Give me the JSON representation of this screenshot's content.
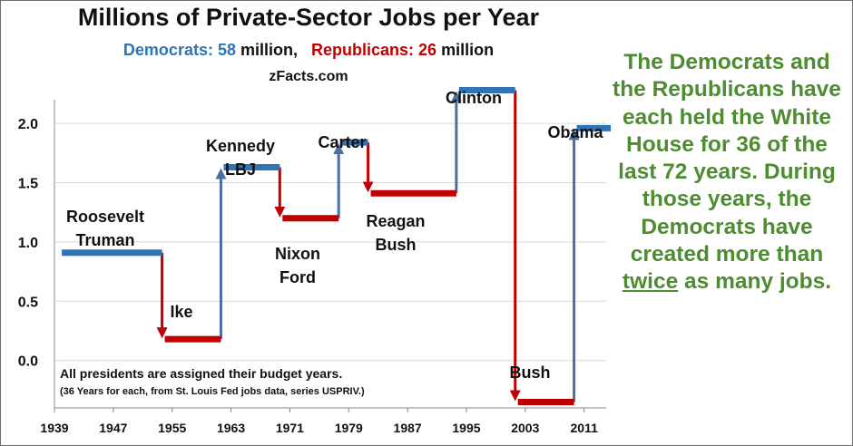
{
  "chart_data": {
    "type": "line",
    "style": "step",
    "title": "Millions of Private-Sector Jobs per Year",
    "subtitle": {
      "dem_label": "Democrats: 58",
      "dem_suffix": " million,",
      "rep_label": "Republicans: 26",
      "rep_suffix": " million"
    },
    "source": "zFacts.com",
    "colors": {
      "dem": "#2f75b5",
      "rep": "#c00000",
      "grid": "#d9d9d9",
      "axis": "#888888"
    },
    "xlim": [
      1939,
      2014
    ],
    "ylim": [
      -0.4,
      2.2
    ],
    "x_ticks": [
      1939,
      1947,
      1955,
      1963,
      1971,
      1979,
      1987,
      1995,
      2003,
      2011
    ],
    "y_ticks": [
      0.0,
      0.5,
      1.0,
      1.5,
      2.0
    ],
    "y_tick_labels": [
      "0.0",
      "0.5",
      "1.0",
      "1.5",
      "2.0"
    ],
    "grid": true,
    "segments": [
      {
        "start": 1940,
        "end": 1953,
        "value": 0.91,
        "party": "dem",
        "label": [
          "Roosevelt",
          "Truman"
        ]
      },
      {
        "start": 1954,
        "end": 1961,
        "value": 0.18,
        "party": "rep",
        "label": [
          "Ike"
        ]
      },
      {
        "start": 1962,
        "end": 1969,
        "value": 1.63,
        "party": "dem",
        "label": [
          "Kennedy",
          "LBJ"
        ]
      },
      {
        "start": 1970,
        "end": 1977,
        "value": 1.2,
        "party": "rep",
        "label": [
          "Nixon",
          "Ford"
        ]
      },
      {
        "start": 1978,
        "end": 1981,
        "value": 1.84,
        "party": "dem",
        "label": [
          "Carter"
        ]
      },
      {
        "start": 1982,
        "end": 1993,
        "value": 1.41,
        "party": "rep",
        "label": [
          "Reagan",
          "Bush"
        ]
      },
      {
        "start": 1994,
        "end": 2001,
        "value": 2.28,
        "party": "dem",
        "label": [
          "Clinton"
        ]
      },
      {
        "start": 2002,
        "end": 2009,
        "value": -0.35,
        "party": "rep",
        "label": [
          "Bush"
        ]
      },
      {
        "start": 2010,
        "end": 2014,
        "value": 1.96,
        "party": "dem",
        "label": [
          "Obama"
        ]
      }
    ],
    "annotation": "All presidents are assigned their budget years.",
    "annotation_sub": "(36 Years for each, from St. Louis Fed jobs data, series USPRIV.)"
  },
  "side_note": {
    "before_underline": "The Democrats and the Republicans have each held the White House for 36 of the last 72 years.  During those years, the Democrats have created more than ",
    "underlined": "twice",
    "after_underline": " as many jobs."
  }
}
